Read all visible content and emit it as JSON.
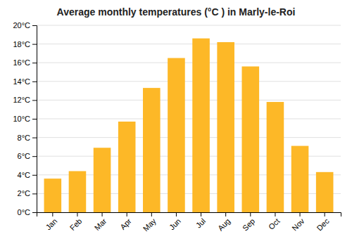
{
  "chart_data": {
    "type": "bar",
    "title": "Average monthly temperatures (°C ) in Marly-le-Roi",
    "categories": [
      "Jan",
      "Feb",
      "Mar",
      "Apr",
      "May",
      "Jun",
      "Jul",
      "Aug",
      "Sep",
      "Oct",
      "Nov",
      "Dec"
    ],
    "values": [
      3.6,
      4.4,
      6.9,
      9.7,
      13.3,
      16.5,
      18.6,
      18.2,
      15.6,
      11.8,
      7.1,
      4.3
    ],
    "color": "#FDB827",
    "ylim": [
      0,
      20
    ],
    "yticks": [
      {
        "value": 0,
        "label": "0°C"
      },
      {
        "value": 2,
        "label": "2°C"
      },
      {
        "value": 4,
        "label": "4°C"
      },
      {
        "value": 6,
        "label": "6°C"
      },
      {
        "value": 8,
        "label": "8°C"
      },
      {
        "value": 10,
        "label": "10°C"
      },
      {
        "value": 12,
        "label": "12°C"
      },
      {
        "value": 14,
        "label": "14°C"
      },
      {
        "value": 16,
        "label": "16°C"
      },
      {
        "value": 18,
        "label": "18°C"
      },
      {
        "value": 20,
        "label": "20°C"
      }
    ],
    "grid": true
  }
}
